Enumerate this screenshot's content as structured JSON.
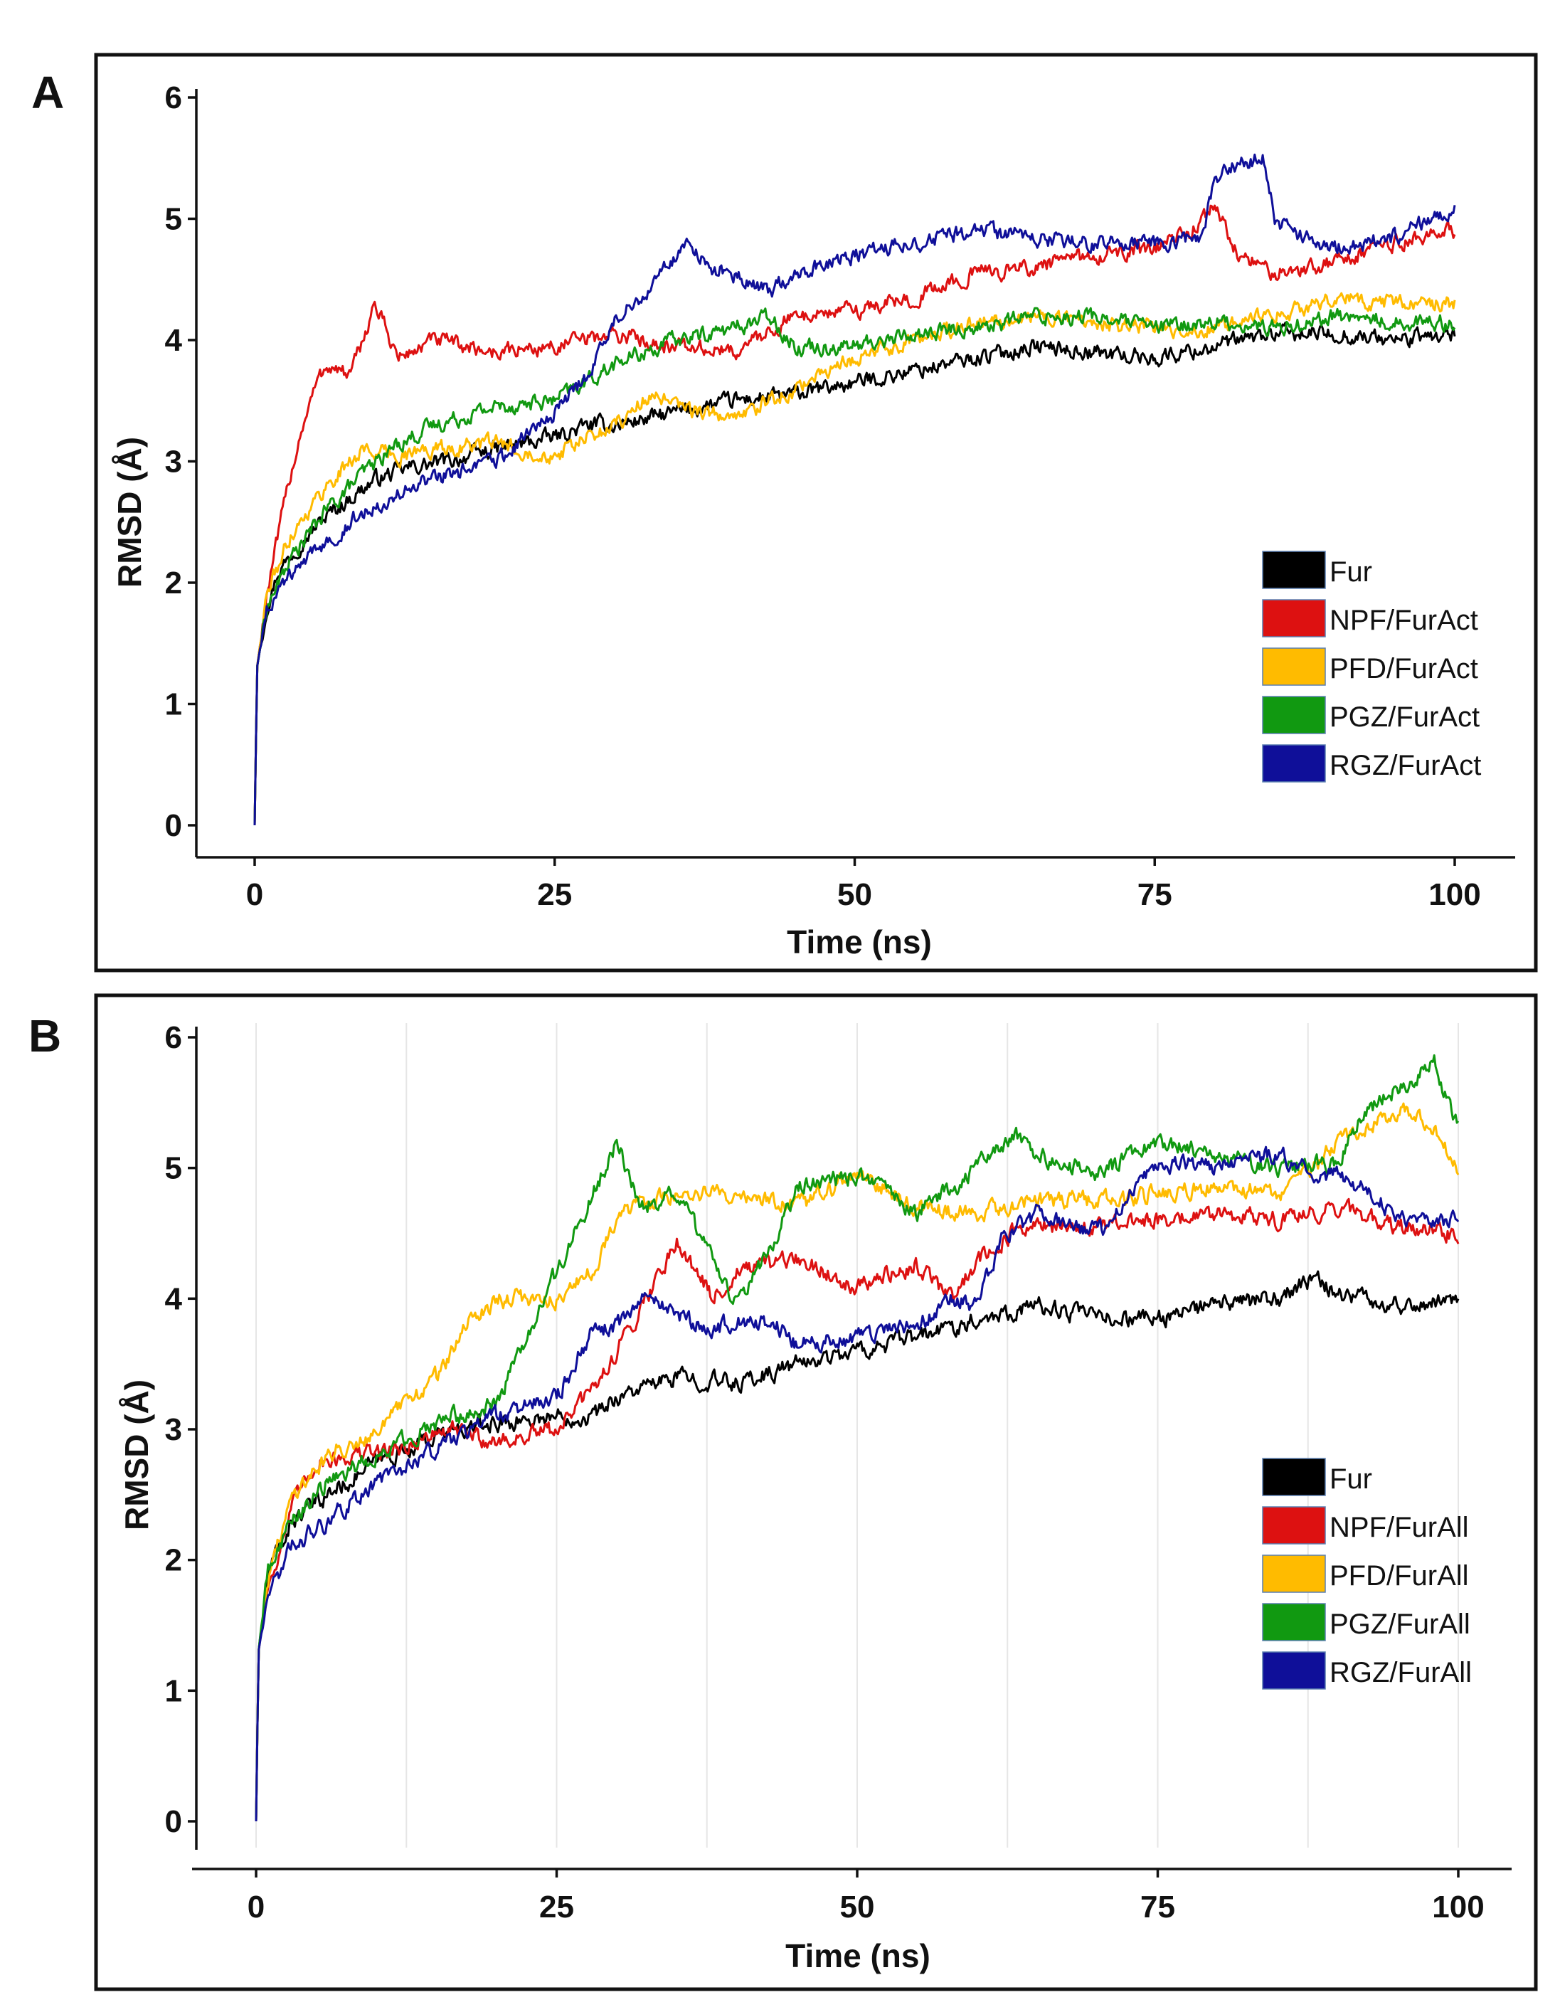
{
  "chart_data": [
    {
      "panel": "A",
      "type": "line",
      "title": "",
      "xlabel": "Time (ns)",
      "ylabel": "RMSD (Å)",
      "xlim": [
        0,
        100
      ],
      "ylim": [
        0,
        6
      ],
      "xticks": [
        0,
        25,
        50,
        75,
        100
      ],
      "yticks": [
        0,
        1,
        2,
        3,
        4,
        5,
        6
      ],
      "grid": false,
      "legend_position": "bottom-right",
      "series": [
        {
          "name": "Fur",
          "color": "#000000",
          "x": [
            0,
            0.2,
            1,
            2,
            4,
            6,
            8,
            10,
            13,
            16,
            20,
            25,
            28,
            30,
            35,
            40,
            45,
            50,
            55,
            60,
            65,
            70,
            75,
            80,
            85,
            90,
            95,
            100
          ],
          "y": [
            0,
            1.3,
            1.8,
            2.1,
            2.35,
            2.55,
            2.7,
            2.85,
            2.95,
            3.0,
            3.1,
            3.2,
            3.3,
            3.3,
            3.4,
            3.5,
            3.55,
            3.65,
            3.75,
            3.85,
            3.95,
            3.9,
            3.85,
            3.95,
            4.05,
            4.05,
            4.0,
            4.05
          ]
        },
        {
          "name": "NPF/FurAct",
          "color": "#dd1111",
          "x": [
            0,
            0.2,
            1,
            2,
            3,
            4,
            5,
            6,
            8,
            10,
            12,
            15,
            20,
            25,
            30,
            35,
            40,
            45,
            50,
            55,
            60,
            65,
            70,
            75,
            78,
            80,
            82,
            85,
            90,
            95,
            100
          ],
          "y": [
            0,
            1.3,
            1.9,
            2.4,
            2.9,
            3.3,
            3.6,
            3.8,
            3.7,
            4.3,
            3.85,
            4.0,
            3.9,
            3.95,
            4.05,
            3.95,
            3.9,
            4.2,
            4.25,
            4.35,
            4.55,
            4.6,
            4.7,
            4.75,
            4.9,
            5.1,
            4.7,
            4.55,
            4.65,
            4.8,
            4.9
          ]
        },
        {
          "name": "PFD/FurAct",
          "color": "#ffbb00",
          "x": [
            0,
            0.2,
            1,
            3,
            6,
            9,
            12,
            15,
            20,
            25,
            30,
            33,
            35,
            40,
            45,
            50,
            55,
            60,
            65,
            70,
            75,
            80,
            85,
            90,
            95,
            100
          ],
          "y": [
            0,
            1.3,
            1.9,
            2.4,
            2.8,
            3.1,
            3.05,
            3.1,
            3.15,
            3.05,
            3.3,
            3.55,
            3.45,
            3.35,
            3.6,
            3.85,
            4.0,
            4.15,
            4.2,
            4.15,
            4.1,
            4.1,
            4.2,
            4.35,
            4.3,
            4.3
          ]
        },
        {
          "name": "PGZ/FurAct",
          "color": "#119911",
          "x": [
            0,
            0.2,
            1,
            3,
            6,
            9,
            12,
            15,
            20,
            25,
            30,
            35,
            40,
            43,
            45,
            50,
            55,
            60,
            65,
            70,
            75,
            80,
            85,
            90,
            95,
            100
          ],
          "y": [
            0,
            1.3,
            1.8,
            2.2,
            2.6,
            2.9,
            3.15,
            3.3,
            3.45,
            3.5,
            3.8,
            4.0,
            4.1,
            4.2,
            3.95,
            3.95,
            4.05,
            4.1,
            4.2,
            4.2,
            4.1,
            4.15,
            4.1,
            4.2,
            4.15,
            4.15
          ]
        },
        {
          "name": "RGZ/FurAct",
          "color": "#0f0f99",
          "x": [
            0,
            0.2,
            1,
            3,
            6,
            10,
            15,
            20,
            25,
            28,
            30,
            33,
            36,
            38,
            40,
            43,
            45,
            50,
            55,
            60,
            65,
            70,
            75,
            79,
            80,
            82,
            84,
            85,
            88,
            90,
            95,
            100
          ],
          "y": [
            0,
            1.3,
            1.8,
            2.05,
            2.35,
            2.65,
            2.85,
            3.0,
            3.4,
            3.75,
            4.15,
            4.45,
            4.8,
            4.6,
            4.55,
            4.4,
            4.55,
            4.7,
            4.8,
            4.9,
            4.85,
            4.8,
            4.8,
            4.85,
            5.35,
            5.45,
            5.5,
            5.0,
            4.8,
            4.75,
            4.85,
            5.1
          ]
        }
      ]
    },
    {
      "panel": "B",
      "type": "line",
      "title": "",
      "xlabel": "Time (ns)",
      "ylabel": "RMSD (Å)",
      "xlim": [
        0,
        100
      ],
      "ylim": [
        0,
        6
      ],
      "xticks": [
        0,
        25,
        50,
        75,
        100
      ],
      "yticks": [
        0,
        1,
        2,
        3,
        4,
        5,
        6
      ],
      "grid": true,
      "legend_position": "bottom-right",
      "series": [
        {
          "name": "Fur",
          "color": "#000000",
          "x": [
            0,
            0.2,
            1,
            3,
            6,
            10,
            15,
            20,
            25,
            28,
            30,
            35,
            40,
            45,
            50,
            55,
            60,
            65,
            70,
            75,
            80,
            85,
            88,
            90,
            95,
            100
          ],
          "y": [
            0,
            1.3,
            1.9,
            2.3,
            2.5,
            2.75,
            2.95,
            3.05,
            3.1,
            3.1,
            3.25,
            3.4,
            3.35,
            3.5,
            3.6,
            3.7,
            3.85,
            3.95,
            3.85,
            3.85,
            3.95,
            4.0,
            4.15,
            4.05,
            3.95,
            4.0
          ]
        },
        {
          "name": "NPF/FurAll",
          "color": "#dd1111",
          "x": [
            0,
            0.2,
            1,
            3,
            5,
            8,
            12,
            16,
            20,
            25,
            28,
            30,
            33,
            35,
            38,
            40,
            45,
            50,
            55,
            58,
            60,
            63,
            65,
            70,
            75,
            80,
            85,
            90,
            95,
            100
          ],
          "y": [
            0,
            1.3,
            1.8,
            2.4,
            2.75,
            2.8,
            2.85,
            3.0,
            2.9,
            3.0,
            3.3,
            3.6,
            4.1,
            4.45,
            4.0,
            4.2,
            4.3,
            4.1,
            4.25,
            4.0,
            4.3,
            4.5,
            4.55,
            4.55,
            4.6,
            4.65,
            4.6,
            4.7,
            4.55,
            4.5
          ]
        },
        {
          "name": "PFD/FurAll",
          "color": "#ffbb00",
          "x": [
            0,
            0.2,
            1,
            3,
            6,
            10,
            15,
            18,
            20,
            25,
            28,
            30,
            35,
            40,
            45,
            50,
            55,
            60,
            65,
            70,
            75,
            80,
            85,
            88,
            90,
            95,
            98,
            100
          ],
          "y": [
            0,
            1.3,
            1.85,
            2.5,
            2.8,
            3.0,
            3.4,
            3.85,
            4.0,
            4.0,
            4.2,
            4.65,
            4.8,
            4.8,
            4.7,
            4.95,
            4.7,
            4.65,
            4.75,
            4.75,
            4.8,
            4.85,
            4.8,
            5.0,
            5.2,
            5.45,
            5.3,
            4.95
          ]
        },
        {
          "name": "PGZ/FurAll",
          "color": "#119911",
          "x": [
            0,
            0.2,
            1,
            3,
            6,
            10,
            15,
            20,
            22,
            25,
            28,
            30,
            32,
            35,
            38,
            40,
            43,
            45,
            50,
            55,
            60,
            63,
            65,
            70,
            75,
            80,
            85,
            90,
            92,
            95,
            98,
            100
          ],
          "y": [
            0,
            1.3,
            1.95,
            2.3,
            2.6,
            2.8,
            3.05,
            3.2,
            3.6,
            4.2,
            4.8,
            5.2,
            4.7,
            4.8,
            4.3,
            3.95,
            4.4,
            4.85,
            4.95,
            4.65,
            5.0,
            5.25,
            5.1,
            4.95,
            5.2,
            5.1,
            5.0,
            5.05,
            5.4,
            5.6,
            5.8,
            5.3
          ]
        },
        {
          "name": "RGZ/FurAll",
          "color": "#0f0f99",
          "x": [
            0,
            0.2,
            1,
            3,
            6,
            10,
            15,
            20,
            25,
            28,
            30,
            33,
            35,
            38,
            40,
            43,
            45,
            50,
            55,
            58,
            60,
            62,
            65,
            70,
            75,
            80,
            85,
            88,
            90,
            93,
            95,
            100
          ],
          "y": [
            0,
            1.3,
            1.75,
            2.1,
            2.3,
            2.6,
            2.85,
            3.1,
            3.25,
            3.75,
            3.8,
            4.05,
            3.85,
            3.75,
            3.85,
            3.8,
            3.65,
            3.7,
            3.8,
            4.0,
            3.95,
            4.45,
            4.65,
            4.5,
            5.05,
            5.0,
            5.1,
            4.95,
            4.95,
            4.8,
            4.6,
            4.6
          ]
        }
      ]
    }
  ]
}
